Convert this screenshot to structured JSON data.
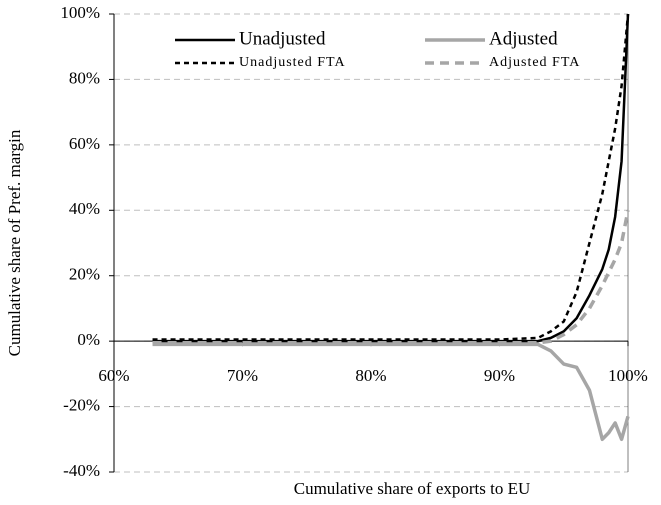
{
  "chart_data": {
    "type": "line",
    "xlabel": "Cumulative share of exports to EU",
    "ylabel": "Cumulative share of Pref. margin",
    "x": [
      63,
      70,
      80,
      90,
      93,
      94,
      95,
      96,
      97,
      98,
      98.5,
      99,
      99.5,
      100
    ],
    "series": [
      {
        "name": "Unadjusted",
        "color": "#000000",
        "dashed": false,
        "values": [
          0,
          0,
          0,
          0,
          0,
          1,
          3,
          7,
          14,
          22,
          28,
          38,
          55,
          100
        ]
      },
      {
        "name": "Adjusted",
        "color": "#a6a6a6",
        "dashed": false,
        "values": [
          -1,
          -1,
          -1,
          -1,
          -1,
          -3,
          -7,
          -8,
          -15,
          -30,
          -28,
          -25,
          -30,
          -23
        ]
      },
      {
        "name": "Unadjusted FTA",
        "color": "#000000",
        "dashed": true,
        "values": [
          0.5,
          0.5,
          0.5,
          0.5,
          1,
          3,
          6,
          15,
          30,
          45,
          55,
          65,
          78,
          100
        ]
      },
      {
        "name": "Adjusted FTA",
        "color": "#a6a6a6",
        "dashed": true,
        "values": [
          -0.5,
          -0.5,
          -0.5,
          -0.5,
          -0.5,
          0,
          2,
          5,
          10,
          17,
          21,
          25,
          30,
          40
        ]
      }
    ],
    "xlim": [
      60,
      100
    ],
    "ylim": [
      -40,
      100
    ],
    "xticks": [
      {
        "value": 60,
        "label": "60%"
      },
      {
        "value": 70,
        "label": "70%"
      },
      {
        "value": 80,
        "label": "80%"
      },
      {
        "value": 90,
        "label": "90%"
      },
      {
        "value": 100,
        "label": "100%"
      }
    ],
    "yticks": [
      {
        "value": -40,
        "label": "-40%"
      },
      {
        "value": -20,
        "label": "-20%"
      },
      {
        "value": 0,
        "label": "0%"
      },
      {
        "value": 20,
        "label": "20%"
      },
      {
        "value": 40,
        "label": "40%"
      },
      {
        "value": 60,
        "label": "60%"
      },
      {
        "value": 80,
        "label": "80%"
      },
      {
        "value": 100,
        "label": "100%"
      }
    ],
    "grid": true,
    "legend": "top"
  }
}
